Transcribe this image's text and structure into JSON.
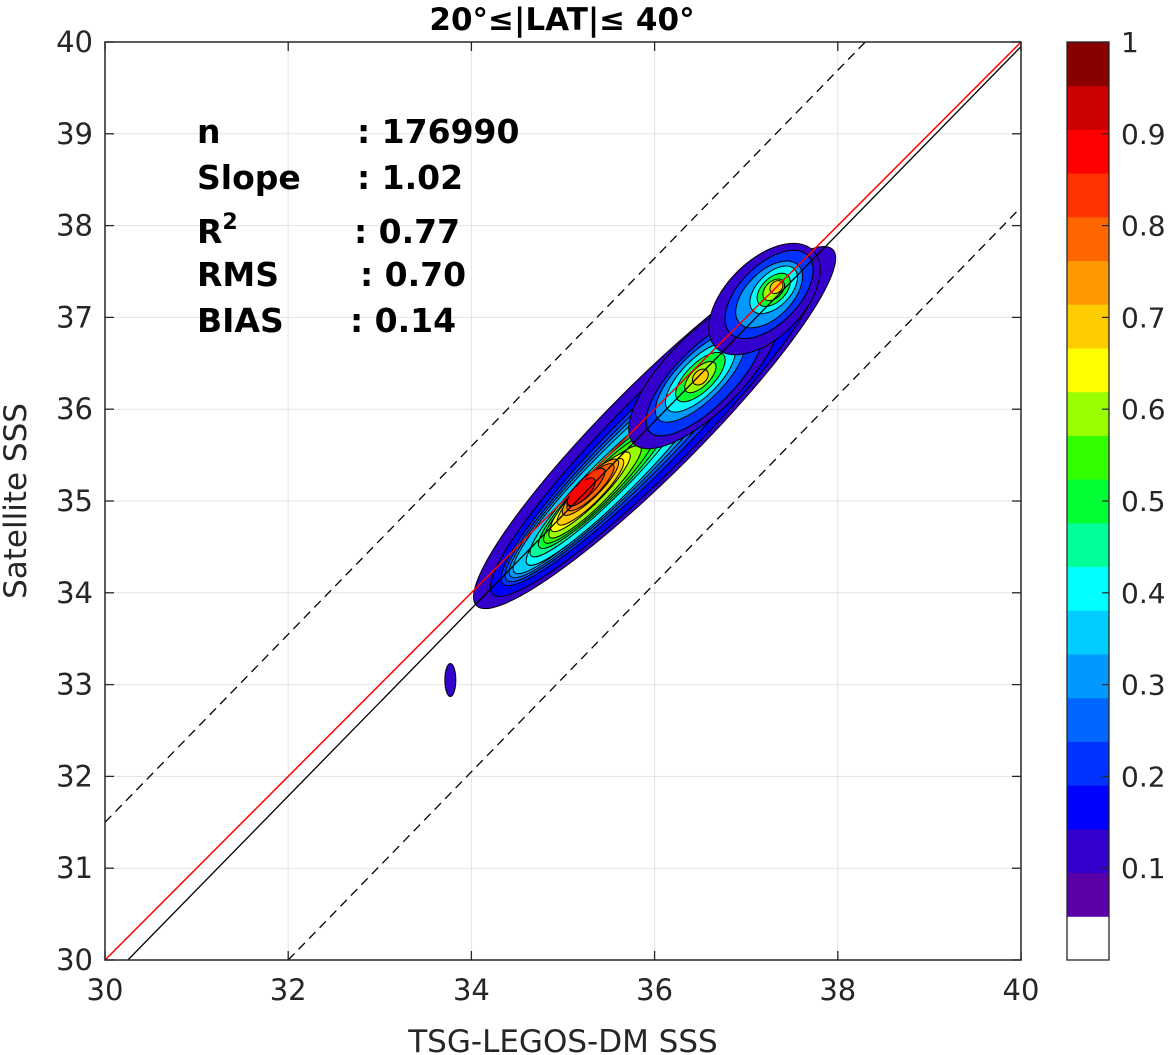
{
  "chart_data": {
    "type": "contour",
    "title": "20°≤|LAT|≤ 40°",
    "xlabel": "TSG-LEGOS-DM SSS",
    "ylabel": "Satellite SSS",
    "xlim": [
      30,
      40
    ],
    "ylim": [
      30,
      40
    ],
    "x_ticks": [
      "30",
      "32",
      "34",
      "36",
      "38",
      "40"
    ],
    "y_ticks": [
      "30",
      "31",
      "32",
      "33",
      "34",
      "35",
      "36",
      "37",
      "38",
      "39",
      "40"
    ],
    "grid": true,
    "stats": [
      {
        "label": "n",
        "value": ": 176990"
      },
      {
        "label": "Slope",
        "value": ": 1.02"
      },
      {
        "label": "R",
        "sup": "2",
        "value": ": 0.77"
      },
      {
        "label": "RMS",
        "value": ": 0.70"
      },
      {
        "label": "BIAS",
        "value": ": 0.14"
      }
    ],
    "lines": {
      "identity": {
        "slope": 1,
        "intercept": 0,
        "color": "#000000"
      },
      "regression": {
        "slope": 1.0,
        "intercept": 0.0,
        "color": "#ff0000",
        "points": [
          [
            30,
            30
          ],
          [
            40,
            40
          ]
        ]
      },
      "upper_dashed": {
        "points": [
          [
            30,
            31.5
          ],
          [
            38.3,
            40
          ]
        ],
        "color": "#000000"
      },
      "lower_dashed": {
        "points": [
          [
            32,
            30
          ],
          [
            40,
            38.2
          ]
        ],
        "color": "#000000"
      }
    },
    "blobs": [
      {
        "level": 0.05,
        "cx": 36.0,
        "cy": 35.8,
        "a": 2.75,
        "b": 0.5
      },
      {
        "level": 0.1,
        "cx": 36.0,
        "cy": 35.75,
        "a": 2.5,
        "b": 0.42
      },
      {
        "level": 0.15,
        "cx": 35.9,
        "cy": 35.65,
        "a": 2.2,
        "b": 0.35
      },
      {
        "level": 0.2,
        "cx": 35.8,
        "cy": 35.55,
        "a": 2.0,
        "b": 0.31
      },
      {
        "level": 0.25,
        "cx": 35.7,
        "cy": 35.45,
        "a": 1.8,
        "b": 0.28
      },
      {
        "level": 0.3,
        "cx": 35.6,
        "cy": 35.35,
        "a": 1.6,
        "b": 0.25
      },
      {
        "level": 0.35,
        "cx": 35.6,
        "cy": 35.3,
        "a": 1.4,
        "b": 0.22
      },
      {
        "level": 0.4,
        "cx": 35.5,
        "cy": 35.25,
        "a": 1.2,
        "b": 0.2
      },
      {
        "level": 0.45,
        "cx": 35.45,
        "cy": 35.2,
        "a": 1.0,
        "b": 0.18
      },
      {
        "level": 0.5,
        "cx": 35.4,
        "cy": 35.15,
        "a": 0.85,
        "b": 0.16
      },
      {
        "level": 0.55,
        "cx": 35.35,
        "cy": 35.1,
        "a": 0.7,
        "b": 0.14
      },
      {
        "level": 0.6,
        "cx": 35.3,
        "cy": 35.1,
        "a": 0.6,
        "b": 0.13
      },
      {
        "level": 0.65,
        "cx": 35.3,
        "cy": 35.1,
        "a": 0.5,
        "b": 0.12
      },
      {
        "level": 0.7,
        "cx": 35.3,
        "cy": 35.15,
        "a": 0.42,
        "b": 0.11
      },
      {
        "level": 0.75,
        "cx": 35.3,
        "cy": 35.15,
        "a": 0.35,
        "b": 0.1
      },
      {
        "level": 0.8,
        "cx": 35.25,
        "cy": 35.15,
        "a": 0.28,
        "b": 0.09
      },
      {
        "level": 0.85,
        "cx": 35.2,
        "cy": 35.1,
        "a": 0.2,
        "b": 0.08
      },
      {
        "level": 0.05,
        "cx": 36.55,
        "cy": 36.4,
        "a": 1.1,
        "b": 0.42
      },
      {
        "level": 0.15,
        "cx": 36.55,
        "cy": 36.35,
        "a": 0.85,
        "b": 0.32
      },
      {
        "level": 0.25,
        "cx": 36.5,
        "cy": 36.35,
        "a": 0.65,
        "b": 0.25
      },
      {
        "level": 0.35,
        "cx": 36.5,
        "cy": 36.35,
        "a": 0.5,
        "b": 0.2
      },
      {
        "level": 0.45,
        "cx": 36.5,
        "cy": 36.35,
        "a": 0.35,
        "b": 0.15
      },
      {
        "level": 0.55,
        "cx": 36.5,
        "cy": 36.35,
        "a": 0.22,
        "b": 0.1
      },
      {
        "level": 0.65,
        "cx": 36.5,
        "cy": 36.35,
        "a": 0.1,
        "b": 0.07
      },
      {
        "level": 0.05,
        "cx": 37.2,
        "cy": 37.2,
        "a": 0.75,
        "b": 0.42
      },
      {
        "level": 0.15,
        "cx": 37.25,
        "cy": 37.25,
        "a": 0.6,
        "b": 0.32
      },
      {
        "level": 0.25,
        "cx": 37.25,
        "cy": 37.25,
        "a": 0.45,
        "b": 0.25
      },
      {
        "level": 0.35,
        "cx": 37.3,
        "cy": 37.3,
        "a": 0.32,
        "b": 0.18
      },
      {
        "level": 0.45,
        "cx": 37.3,
        "cy": 37.3,
        "a": 0.22,
        "b": 0.13
      },
      {
        "level": 0.55,
        "cx": 37.3,
        "cy": 37.3,
        "a": 0.14,
        "b": 0.09
      },
      {
        "level": 0.65,
        "cx": 37.33,
        "cy": 37.33,
        "a": 0.08,
        "b": 0.06
      },
      {
        "level": 0.05,
        "cx": 33.77,
        "cy": 33.05,
        "a": 0.06,
        "b": 0.18,
        "rot": 0
      }
    ],
    "colorbar": {
      "range": [
        0,
        1
      ],
      "ticks": [
        "0.1",
        "0.2",
        "0.3",
        "0.4",
        "0.5",
        "0.6",
        "0.7",
        "0.8",
        "0.9",
        "1"
      ],
      "colors": [
        "#ffffff",
        "#5a00a8",
        "#3300cc",
        "#0000ff",
        "#0033ff",
        "#0066ff",
        "#0099ff",
        "#00ccff",
        "#00ffff",
        "#00ff99",
        "#00ff33",
        "#33ff00",
        "#99ff00",
        "#ffff00",
        "#ffcc00",
        "#ff9900",
        "#ff6600",
        "#ff3300",
        "#ff0000",
        "#cc0000",
        "#880000"
      ]
    }
  }
}
